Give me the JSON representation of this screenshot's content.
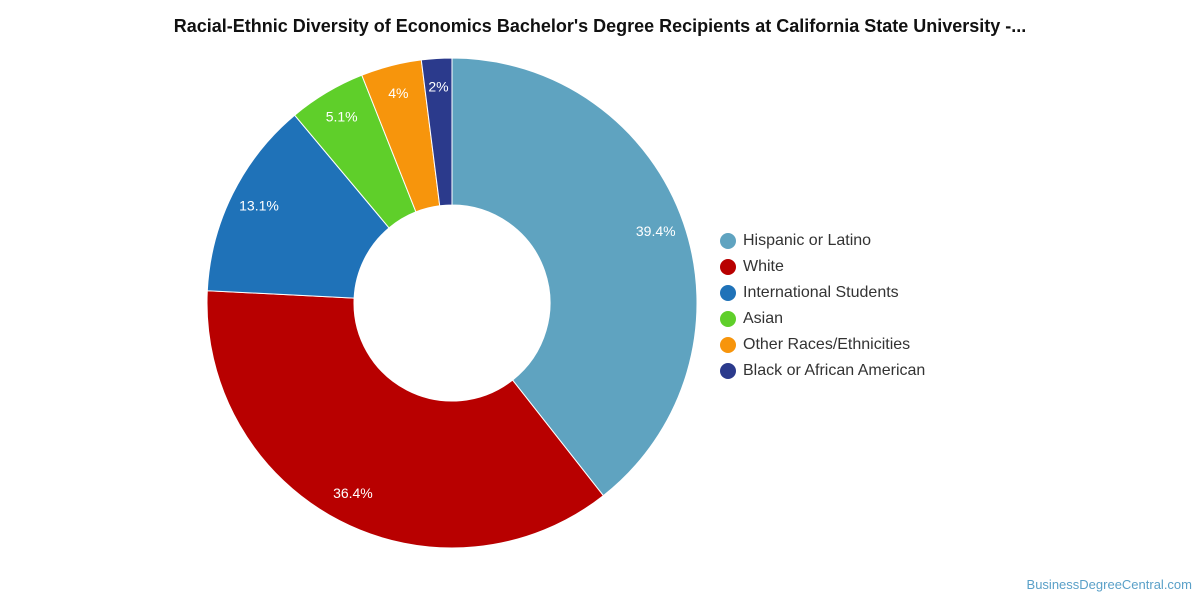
{
  "chart_data": {
    "type": "pie",
    "title": "Racial-Ethnic Diversity of Economics Bachelor's Degree Recipients at California State University -...",
    "inner_radius_ratio": 0.4,
    "legend_position": "right",
    "slices": [
      {
        "label": "Hispanic or Latino",
        "value": 39.4,
        "display": "39.4%",
        "color": "#5fa3c0"
      },
      {
        "label": "White",
        "value": 36.4,
        "display": "36.4%",
        "color": "#b80000"
      },
      {
        "label": "International Students",
        "value": 13.1,
        "display": "13.1%",
        "color": "#1f72b8"
      },
      {
        "label": "Asian",
        "value": 5.1,
        "display": "5.1%",
        "color": "#5fcf2a"
      },
      {
        "label": "Other Races/Ethnicities",
        "value": 4.0,
        "display": "4%",
        "color": "#f7950c"
      },
      {
        "label": "Black or African American",
        "value": 2.0,
        "display": "2%",
        "color": "#2b3a8c"
      }
    ]
  },
  "watermark": "BusinessDegreeCentral.com"
}
